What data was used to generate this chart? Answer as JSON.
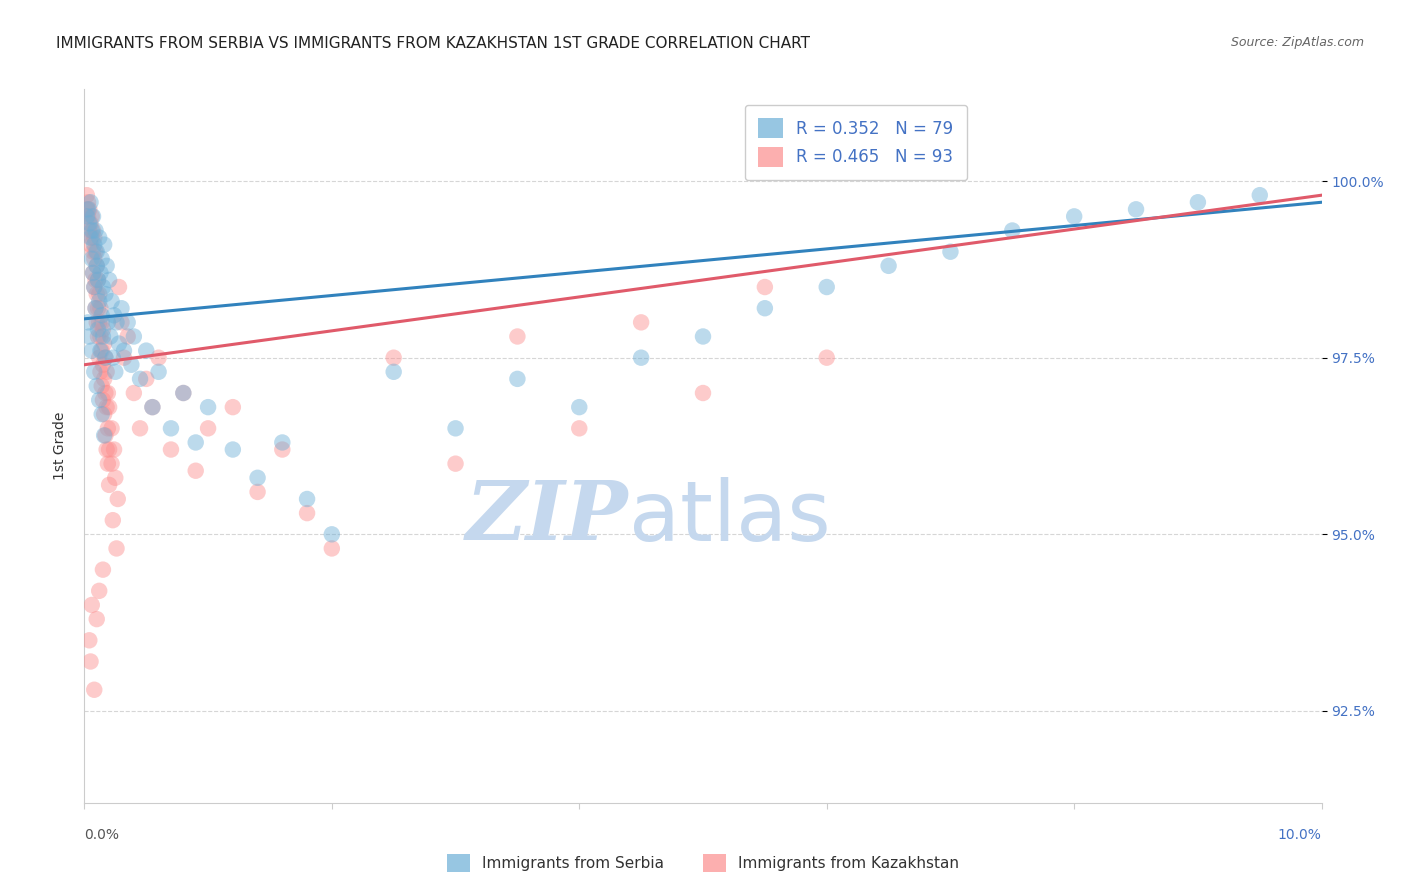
{
  "title": "IMMIGRANTS FROM SERBIA VS IMMIGRANTS FROM KAZAKHSTAN 1ST GRADE CORRELATION CHART",
  "source": "Source: ZipAtlas.com",
  "ylabel": "1st Grade",
  "y_ticks": [
    92.5,
    95.0,
    97.5,
    100.0
  ],
  "y_tick_labels": [
    "92.5%",
    "95.0%",
    "97.5%",
    "100.0%"
  ],
  "xlim": [
    0.0,
    10.0
  ],
  "ylim": [
    91.2,
    101.3
  ],
  "serbia_color": "#6baed6",
  "kazakhstan_color": "#fc8d8d",
  "serbia_line_color": "#3182bd",
  "kazakhstan_line_color": "#e05a6a",
  "serbia_scatter": [
    [
      0.02,
      99.5
    ],
    [
      0.03,
      99.6
    ],
    [
      0.04,
      99.4
    ],
    [
      0.05,
      99.7
    ],
    [
      0.05,
      99.2
    ],
    [
      0.06,
      99.3
    ],
    [
      0.06,
      98.9
    ],
    [
      0.07,
      99.5
    ],
    [
      0.07,
      98.7
    ],
    [
      0.08,
      99.1
    ],
    [
      0.08,
      98.5
    ],
    [
      0.09,
      99.3
    ],
    [
      0.09,
      98.2
    ],
    [
      0.1,
      99.0
    ],
    [
      0.1,
      98.8
    ],
    [
      0.11,
      98.6
    ],
    [
      0.11,
      97.9
    ],
    [
      0.12,
      99.2
    ],
    [
      0.12,
      98.3
    ],
    [
      0.13,
      98.7
    ],
    [
      0.13,
      97.6
    ],
    [
      0.14,
      98.9
    ],
    [
      0.14,
      98.1
    ],
    [
      0.15,
      98.5
    ],
    [
      0.15,
      97.8
    ],
    [
      0.16,
      99.1
    ],
    [
      0.17,
      98.4
    ],
    [
      0.17,
      97.5
    ],
    [
      0.18,
      98.8
    ],
    [
      0.19,
      98.0
    ],
    [
      0.2,
      98.6
    ],
    [
      0.21,
      97.8
    ],
    [
      0.22,
      98.3
    ],
    [
      0.23,
      97.5
    ],
    [
      0.24,
      98.1
    ],
    [
      0.25,
      97.3
    ],
    [
      0.26,
      98.0
    ],
    [
      0.28,
      97.7
    ],
    [
      0.3,
      98.2
    ],
    [
      0.32,
      97.6
    ],
    [
      0.35,
      98.0
    ],
    [
      0.38,
      97.4
    ],
    [
      0.4,
      97.8
    ],
    [
      0.45,
      97.2
    ],
    [
      0.5,
      97.6
    ],
    [
      0.55,
      96.8
    ],
    [
      0.6,
      97.3
    ],
    [
      0.7,
      96.5
    ],
    [
      0.8,
      97.0
    ],
    [
      0.9,
      96.3
    ],
    [
      1.0,
      96.8
    ],
    [
      1.2,
      96.2
    ],
    [
      1.4,
      95.8
    ],
    [
      1.6,
      96.3
    ],
    [
      1.8,
      95.5
    ],
    [
      2.0,
      95.0
    ],
    [
      2.5,
      97.3
    ],
    [
      3.0,
      96.5
    ],
    [
      3.5,
      97.2
    ],
    [
      4.0,
      96.8
    ],
    [
      4.5,
      97.5
    ],
    [
      5.0,
      97.8
    ],
    [
      5.5,
      98.2
    ],
    [
      6.0,
      98.5
    ],
    [
      6.5,
      98.8
    ],
    [
      7.0,
      99.0
    ],
    [
      7.5,
      99.3
    ],
    [
      8.0,
      99.5
    ],
    [
      8.5,
      99.6
    ],
    [
      9.0,
      99.7
    ],
    [
      9.5,
      99.8
    ],
    [
      0.03,
      98.0
    ],
    [
      0.04,
      97.8
    ],
    [
      0.06,
      97.6
    ],
    [
      0.08,
      97.3
    ],
    [
      0.1,
      97.1
    ],
    [
      0.12,
      96.9
    ],
    [
      0.14,
      96.7
    ],
    [
      0.16,
      96.4
    ]
  ],
  "kazakhstan_scatter": [
    [
      0.02,
      99.6
    ],
    [
      0.02,
      99.8
    ],
    [
      0.03,
      99.5
    ],
    [
      0.03,
      99.7
    ],
    [
      0.04,
      99.3
    ],
    [
      0.04,
      99.6
    ],
    [
      0.05,
      99.4
    ],
    [
      0.05,
      99.1
    ],
    [
      0.06,
      99.5
    ],
    [
      0.06,
      99.2
    ],
    [
      0.07,
      99.3
    ],
    [
      0.07,
      99.0
    ],
    [
      0.07,
      98.7
    ],
    [
      0.08,
      99.2
    ],
    [
      0.08,
      98.9
    ],
    [
      0.08,
      98.5
    ],
    [
      0.09,
      99.0
    ],
    [
      0.09,
      98.6
    ],
    [
      0.09,
      98.2
    ],
    [
      0.1,
      98.8
    ],
    [
      0.1,
      98.4
    ],
    [
      0.1,
      98.0
    ],
    [
      0.11,
      98.6
    ],
    [
      0.11,
      98.2
    ],
    [
      0.11,
      97.8
    ],
    [
      0.12,
      98.4
    ],
    [
      0.12,
      98.0
    ],
    [
      0.12,
      97.5
    ],
    [
      0.13,
      98.2
    ],
    [
      0.13,
      97.8
    ],
    [
      0.13,
      97.3
    ],
    [
      0.14,
      98.0
    ],
    [
      0.14,
      97.6
    ],
    [
      0.14,
      97.1
    ],
    [
      0.15,
      97.9
    ],
    [
      0.15,
      97.4
    ],
    [
      0.15,
      96.9
    ],
    [
      0.16,
      97.7
    ],
    [
      0.16,
      97.2
    ],
    [
      0.16,
      96.7
    ],
    [
      0.17,
      97.5
    ],
    [
      0.17,
      97.0
    ],
    [
      0.17,
      96.4
    ],
    [
      0.18,
      97.3
    ],
    [
      0.18,
      96.8
    ],
    [
      0.18,
      96.2
    ],
    [
      0.19,
      97.0
    ],
    [
      0.19,
      96.5
    ],
    [
      0.19,
      96.0
    ],
    [
      0.2,
      96.8
    ],
    [
      0.2,
      96.2
    ],
    [
      0.2,
      95.7
    ],
    [
      0.22,
      96.5
    ],
    [
      0.22,
      96.0
    ],
    [
      0.24,
      96.2
    ],
    [
      0.25,
      95.8
    ],
    [
      0.27,
      95.5
    ],
    [
      0.28,
      98.5
    ],
    [
      0.3,
      98.0
    ],
    [
      0.32,
      97.5
    ],
    [
      0.35,
      97.8
    ],
    [
      0.4,
      97.0
    ],
    [
      0.45,
      96.5
    ],
    [
      0.5,
      97.2
    ],
    [
      0.55,
      96.8
    ],
    [
      0.6,
      97.5
    ],
    [
      0.7,
      96.2
    ],
    [
      0.8,
      97.0
    ],
    [
      0.9,
      95.9
    ],
    [
      1.0,
      96.5
    ],
    [
      1.2,
      96.8
    ],
    [
      1.4,
      95.6
    ],
    [
      1.6,
      96.2
    ],
    [
      1.8,
      95.3
    ],
    [
      2.0,
      94.8
    ],
    [
      2.5,
      97.5
    ],
    [
      3.0,
      96.0
    ],
    [
      3.5,
      97.8
    ],
    [
      4.0,
      96.5
    ],
    [
      4.5,
      98.0
    ],
    [
      5.0,
      97.0
    ],
    [
      5.5,
      98.5
    ],
    [
      6.0,
      97.5
    ],
    [
      0.23,
      95.2
    ],
    [
      0.26,
      94.8
    ],
    [
      0.15,
      94.5
    ],
    [
      0.1,
      93.8
    ],
    [
      0.05,
      93.2
    ],
    [
      0.08,
      92.8
    ],
    [
      0.06,
      94.0
    ],
    [
      0.12,
      94.2
    ],
    [
      0.04,
      93.5
    ]
  ],
  "serbia_trendline": [
    [
      0.0,
      98.05
    ],
    [
      10.0,
      99.7
    ]
  ],
  "kazakhstan_trendline": [
    [
      0.0,
      97.4
    ],
    [
      10.0,
      99.8
    ]
  ],
  "watermark_zip": "ZIP",
  "watermark_atlas": "atlas",
  "watermark_color_zip": "#c5d8ee",
  "watermark_color_atlas": "#c5d8ee",
  "background_color": "#ffffff",
  "grid_color": "#bbbbbb",
  "title_fontsize": 11,
  "tick_label_color_y": "#4472c4",
  "legend_label_color": "#4472c4"
}
